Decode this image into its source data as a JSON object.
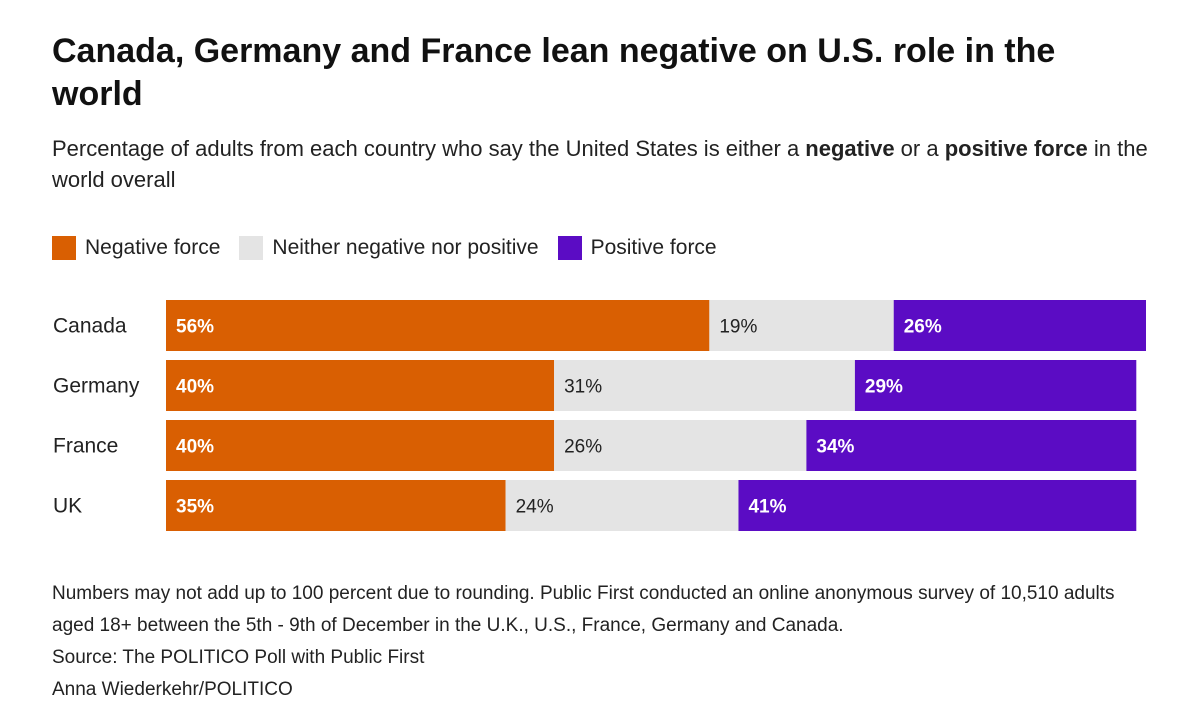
{
  "title": "Canada, Germany and France lean negative on U.S. role in the world",
  "subtitle": {
    "part1": "Percentage of adults from each country who say the United States is either a ",
    "bold1": "negative",
    "part2": " or a ",
    "bold2": "positive force",
    "part3": " in the world overall"
  },
  "colors": {
    "negative": "#d95f02",
    "neither": "#e4e4e4",
    "positive": "#5b0cc4",
    "label_dark": "#222222",
    "label_light": "#ffffff"
  },
  "chart_data": {
    "type": "bar",
    "orientation": "horizontal",
    "stacked": true,
    "title": "Canada, Germany and France lean negative on U.S. role in the world",
    "categories": [
      "Canada",
      "Germany",
      "France",
      "UK"
    ],
    "series": [
      {
        "name": "Negative force",
        "values": [
          56,
          40,
          40,
          35
        ],
        "labels": [
          "56%",
          "40%",
          "40%",
          "35%"
        ]
      },
      {
        "name": "Neither negative nor positive",
        "values": [
          19,
          31,
          26,
          24
        ],
        "labels": [
          "19%",
          "31%",
          "26%",
          "24%"
        ]
      },
      {
        "name": "Positive force",
        "values": [
          26,
          29,
          34,
          41
        ],
        "labels": [
          "26%",
          "29%",
          "34%",
          "41%"
        ]
      }
    ],
    "xlim": [
      0,
      101
    ],
    "legend": "top-left",
    "grid": false
  },
  "notes": {
    "line1": "Numbers may not add up to 100 percent due to rounding. Public First conducted an online anonymous survey of 10,510 adults aged 18+ between the 5th - 9th of December in the U.K., U.S., France, Germany and Canada.",
    "source": "Source: The POLITICO Poll with Public First",
    "credit": "Anna Wiederkehr/POLITICO"
  }
}
